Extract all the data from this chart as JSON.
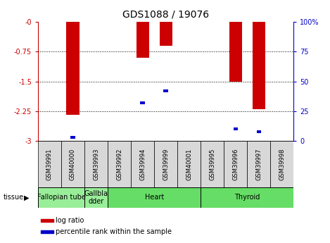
{
  "title": "GDS1088 / 19076",
  "samples": [
    "GSM39991",
    "GSM40000",
    "GSM39993",
    "GSM39992",
    "GSM39994",
    "GSM39999",
    "GSM40001",
    "GSM39995",
    "GSM39996",
    "GSM39997",
    "GSM39998"
  ],
  "log_ratios": [
    0,
    -2.35,
    0,
    0,
    -0.9,
    -0.6,
    0,
    0,
    -1.5,
    -2.2,
    0
  ],
  "percentile_ranks": [
    null,
    3,
    null,
    null,
    32,
    42,
    null,
    null,
    10,
    8,
    null
  ],
  "tissues": [
    {
      "label": "Fallopian tube",
      "start": 0,
      "end": 2,
      "color": "#99EE99"
    },
    {
      "label": "Gallbla\ndder",
      "start": 2,
      "end": 3,
      "color": "#99EE99"
    },
    {
      "label": "Heart",
      "start": 3,
      "end": 7,
      "color": "#66DD66"
    },
    {
      "label": "Thyroid",
      "start": 7,
      "end": 11,
      "color": "#66DD66"
    }
  ],
  "ylim_left": [
    -3,
    0
  ],
  "ylim_right": [
    0,
    100
  ],
  "left_yticks": [
    0,
    -0.75,
    -1.5,
    -2.25,
    -3
  ],
  "left_yticklabels": [
    "-0",
    "-0.75",
    "-1.5",
    "-2.25",
    "-3"
  ],
  "right_yticks": [
    0,
    25,
    50,
    75,
    100
  ],
  "right_yticklabels": [
    "0",
    "25",
    "50",
    "75",
    "100%"
  ],
  "bar_color": "#CC0000",
  "blue_color": "#0000CC",
  "background_color": "#ffffff",
  "plot_bg": "#ffffff",
  "left_axis_color": "#CC0000",
  "right_axis_color": "#0000CC",
  "title_fontsize": 10,
  "tick_fontsize": 7,
  "sample_fontsize": 6,
  "tissue_fontsize": 7,
  "legend_fontsize": 7,
  "tissue_label_fontsize": 6
}
